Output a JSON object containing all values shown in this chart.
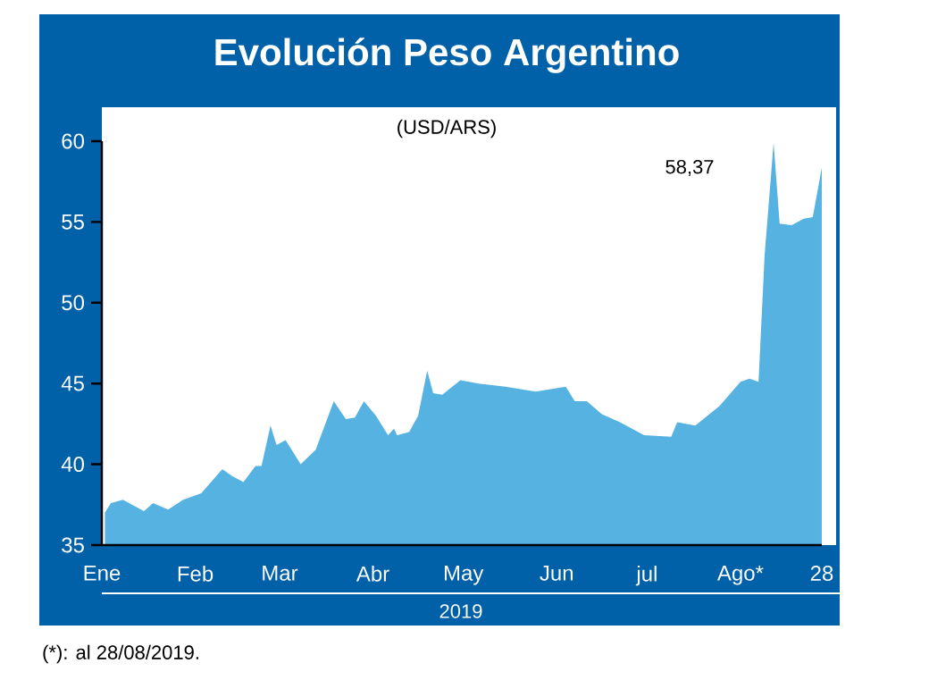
{
  "chart_data": {
    "type": "area",
    "title": "Evolución Peso Argentino",
    "subtitle": "(USD/ARS)",
    "xlabel": "2019",
    "color": "#56b3e1",
    "x": [
      "2019-01-02",
      "2019-01-04",
      "2019-01-08",
      "2019-01-11",
      "2019-01-15",
      "2019-01-18",
      "2019-01-23",
      "2019-01-28",
      "2019-02-03",
      "2019-02-10",
      "2019-02-13",
      "2019-02-17",
      "2019-02-21",
      "2019-02-23",
      "2019-02-26",
      "2019-02-28",
      "2019-03-03",
      "2019-03-08",
      "2019-03-13",
      "2019-03-19",
      "2019-03-23",
      "2019-03-26",
      "2019-03-29",
      "2019-04-02",
      "2019-04-06",
      "2019-04-08",
      "2019-04-09",
      "2019-04-13",
      "2019-04-16",
      "2019-04-19",
      "2019-04-21",
      "2019-04-24",
      "2019-04-30",
      "2019-05-06",
      "2019-05-15",
      "2019-05-25",
      "2019-06-04",
      "2019-06-07",
      "2019-06-11",
      "2019-06-16",
      "2019-06-22",
      "2019-06-30",
      "2019-07-09",
      "2019-07-11",
      "2019-07-17",
      "2019-07-25",
      "2019-08-01",
      "2019-08-04",
      "2019-08-07",
      "2019-08-09",
      "2019-08-12",
      "2019-08-14",
      "2019-08-18",
      "2019-08-22",
      "2019-08-25",
      "2019-08-28"
    ],
    "values": [
      37.0,
      37.6,
      37.8,
      37.5,
      37.1,
      37.6,
      37.2,
      37.8,
      38.2,
      39.7,
      39.3,
      38.9,
      39.9,
      39.9,
      42.4,
      41.2,
      41.5,
      40.0,
      40.9,
      43.9,
      42.8,
      42.9,
      43.9,
      43.0,
      41.8,
      42.2,
      41.8,
      42.0,
      43.0,
      45.8,
      44.4,
      44.3,
      45.2,
      45.0,
      44.8,
      44.5,
      44.8,
      43.9,
      43.9,
      43.1,
      42.6,
      41.8,
      41.7,
      42.6,
      42.4,
      43.6,
      45.1,
      45.3,
      45.1,
      52.9,
      59.9,
      54.9,
      54.8,
      55.2,
      55.3,
      58.37
    ],
    "xlim": [
      "2019-01-01",
      "2019-08-28"
    ],
    "xticks": [
      {
        "value": "2019-01-01",
        "label": "Ene"
      },
      {
        "value": "2019-02-01",
        "label": "Feb"
      },
      {
        "value": "2019-03-01",
        "label": "Mar"
      },
      {
        "value": "2019-04-01",
        "label": "Abr"
      },
      {
        "value": "2019-05-01",
        "label": "May"
      },
      {
        "value": "2019-06-01",
        "label": "Jun"
      },
      {
        "value": "2019-07-01",
        "label": "jul"
      },
      {
        "value": "2019-08-01",
        "label": "Ago*"
      },
      {
        "value": "2019-08-28",
        "label": "28"
      }
    ],
    "ylim": [
      35,
      60
    ],
    "yticks": [
      35,
      40,
      45,
      50,
      55,
      60
    ],
    "annotations": [
      "58,37",
      "(*): al 28/08/2019."
    ]
  }
}
